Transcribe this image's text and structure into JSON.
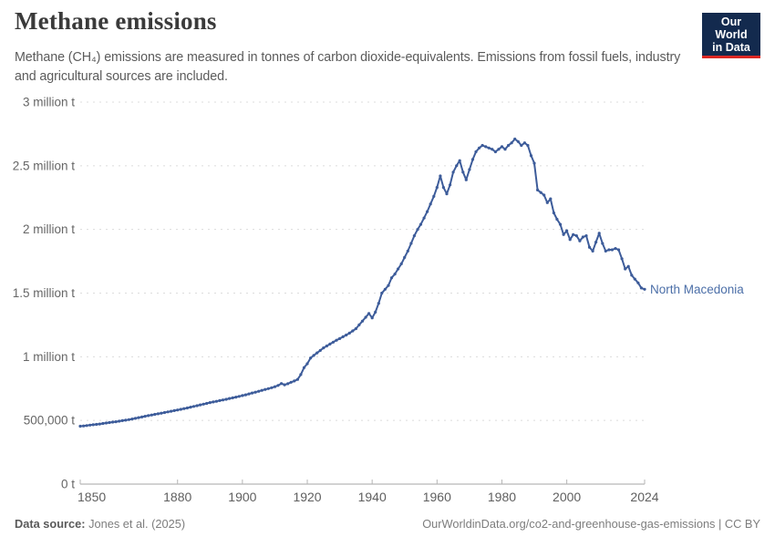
{
  "header": {
    "title": "Methane emissions",
    "subtitle": "Methane (CH₄) emissions are measured in tonnes of carbon dioxide-equivalents. Emissions from fossil fuels, industry and agricultural sources are included."
  },
  "logo": {
    "line1": "Our World",
    "line2": "in Data",
    "bg_color": "#132a4e",
    "accent_color": "#dc2723"
  },
  "footer": {
    "source_label": "Data source:",
    "source_value": "Jones et al. (2025)",
    "right_text": "OurWorldinData.org/co2-and-greenhouse-gas-emissions | CC BY"
  },
  "chart_data": {
    "type": "line",
    "title": "Methane emissions",
    "entity": "North Macedonia",
    "unit": "tonnes of CO₂-equivalents",
    "xlabel": "",
    "ylabel": "",
    "xlim": [
      1850,
      2024
    ],
    "ylim": [
      0,
      3000000
    ],
    "grid": true,
    "legend_position": "end-of-line-label",
    "line_color": "#3d5c9a",
    "label_color": "#4c6fa8",
    "axis_color": "#a5a5a5",
    "grid_color": "#dcdcdc",
    "xticks": [
      1850,
      1880,
      1900,
      1920,
      1940,
      1960,
      1980,
      2000,
      2024
    ],
    "yticks": [
      {
        "value": 0,
        "label": "0 t"
      },
      {
        "value": 500000,
        "label": "500,000 t"
      },
      {
        "value": 1000000,
        "label": "1 million t"
      },
      {
        "value": 1500000,
        "label": "1.5 million t"
      },
      {
        "value": 2000000,
        "label": "2 million t"
      },
      {
        "value": 2500000,
        "label": "2.5 million t"
      },
      {
        "value": 3000000,
        "label": "3 million t"
      }
    ],
    "x_start": 1850,
    "x_step": 1,
    "values": [
      455000,
      457000,
      460000,
      463000,
      466000,
      469000,
      472000,
      476000,
      480000,
      483000,
      487000,
      490000,
      494000,
      498000,
      502000,
      506000,
      511000,
      516000,
      522000,
      527000,
      533000,
      538000,
      543000,
      548000,
      552000,
      557000,
      562000,
      567000,
      572000,
      577000,
      582000,
      587000,
      593000,
      598000,
      604000,
      610000,
      616000,
      622000,
      628000,
      634000,
      640000,
      645000,
      650000,
      656000,
      661000,
      666000,
      672000,
      677000,
      683000,
      689000,
      695000,
      701000,
      708000,
      715000,
      722000,
      729000,
      736000,
      743000,
      750000,
      757000,
      765000,
      775000,
      790000,
      780000,
      788000,
      800000,
      810000,
      822000,
      860000,
      915000,
      945000,
      990000,
      1010000,
      1030000,
      1050000,
      1070000,
      1085000,
      1100000,
      1115000,
      1130000,
      1143000,
      1157000,
      1171000,
      1186000,
      1203000,
      1221000,
      1250000,
      1280000,
      1310000,
      1340000,
      1305000,
      1350000,
      1420000,
      1500000,
      1530000,
      1560000,
      1620000,
      1650000,
      1690000,
      1730000,
      1780000,
      1830000,
      1890000,
      1950000,
      2000000,
      2040000,
      2090000,
      2140000,
      2200000,
      2260000,
      2330000,
      2420000,
      2330000,
      2280000,
      2350000,
      2450000,
      2500000,
      2540000,
      2450000,
      2390000,
      2470000,
      2550000,
      2610000,
      2640000,
      2660000,
      2650000,
      2640000,
      2630000,
      2610000,
      2630000,
      2650000,
      2630000,
      2660000,
      2680000,
      2710000,
      2690000,
      2660000,
      2680000,
      2660000,
      2580000,
      2520000,
      2310000,
      2290000,
      2270000,
      2210000,
      2240000,
      2130000,
      2080000,
      2040000,
      1960000,
      1990000,
      1920000,
      1960000,
      1950000,
      1910000,
      1940000,
      1950000,
      1860000,
      1830000,
      1900000,
      1970000,
      1890000,
      1830000,
      1840000,
      1840000,
      1850000,
      1840000,
      1770000,
      1690000,
      1710000,
      1640000,
      1610000,
      1580000,
      1540000,
      1530000
    ]
  }
}
